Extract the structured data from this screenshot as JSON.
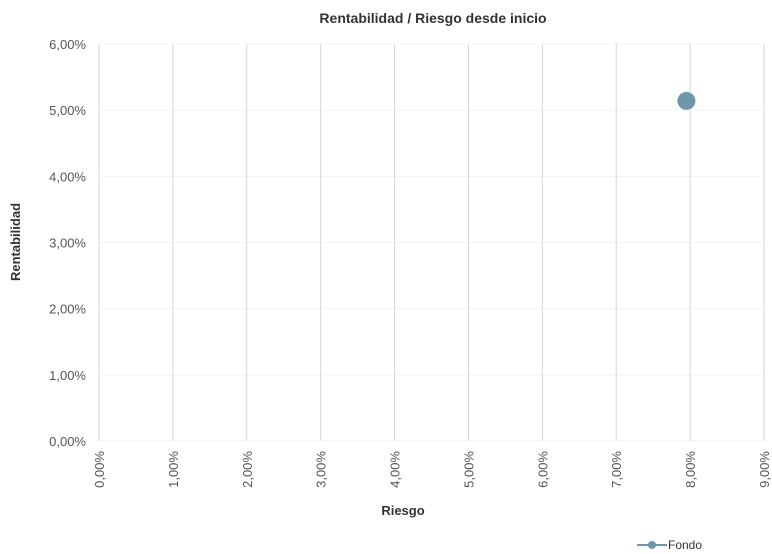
{
  "chart_data": {
    "type": "scatter",
    "title": "Rentabilidad / Riesgo desde inicio",
    "xlabel": "Riesgo",
    "ylabel": "Rentabilidad",
    "xlim": [
      0,
      9
    ],
    "ylim": [
      0,
      6
    ],
    "x_ticks": [
      "0,00%",
      "1,00%",
      "2,00%",
      "3,00%",
      "4,00%",
      "5,00%",
      "6,00%",
      "7,00%",
      "8,00%",
      "9,00%"
    ],
    "y_ticks": [
      "0,00%",
      "1,00%",
      "2,00%",
      "3,00%",
      "4,00%",
      "5,00%",
      "6,00%"
    ],
    "grid": "vertical",
    "legend_position": "bottom-right",
    "series": [
      {
        "name": "Fondo",
        "color": "#6e97a8",
        "points": [
          {
            "x": 7.95,
            "y": 5.14
          }
        ]
      }
    ]
  }
}
